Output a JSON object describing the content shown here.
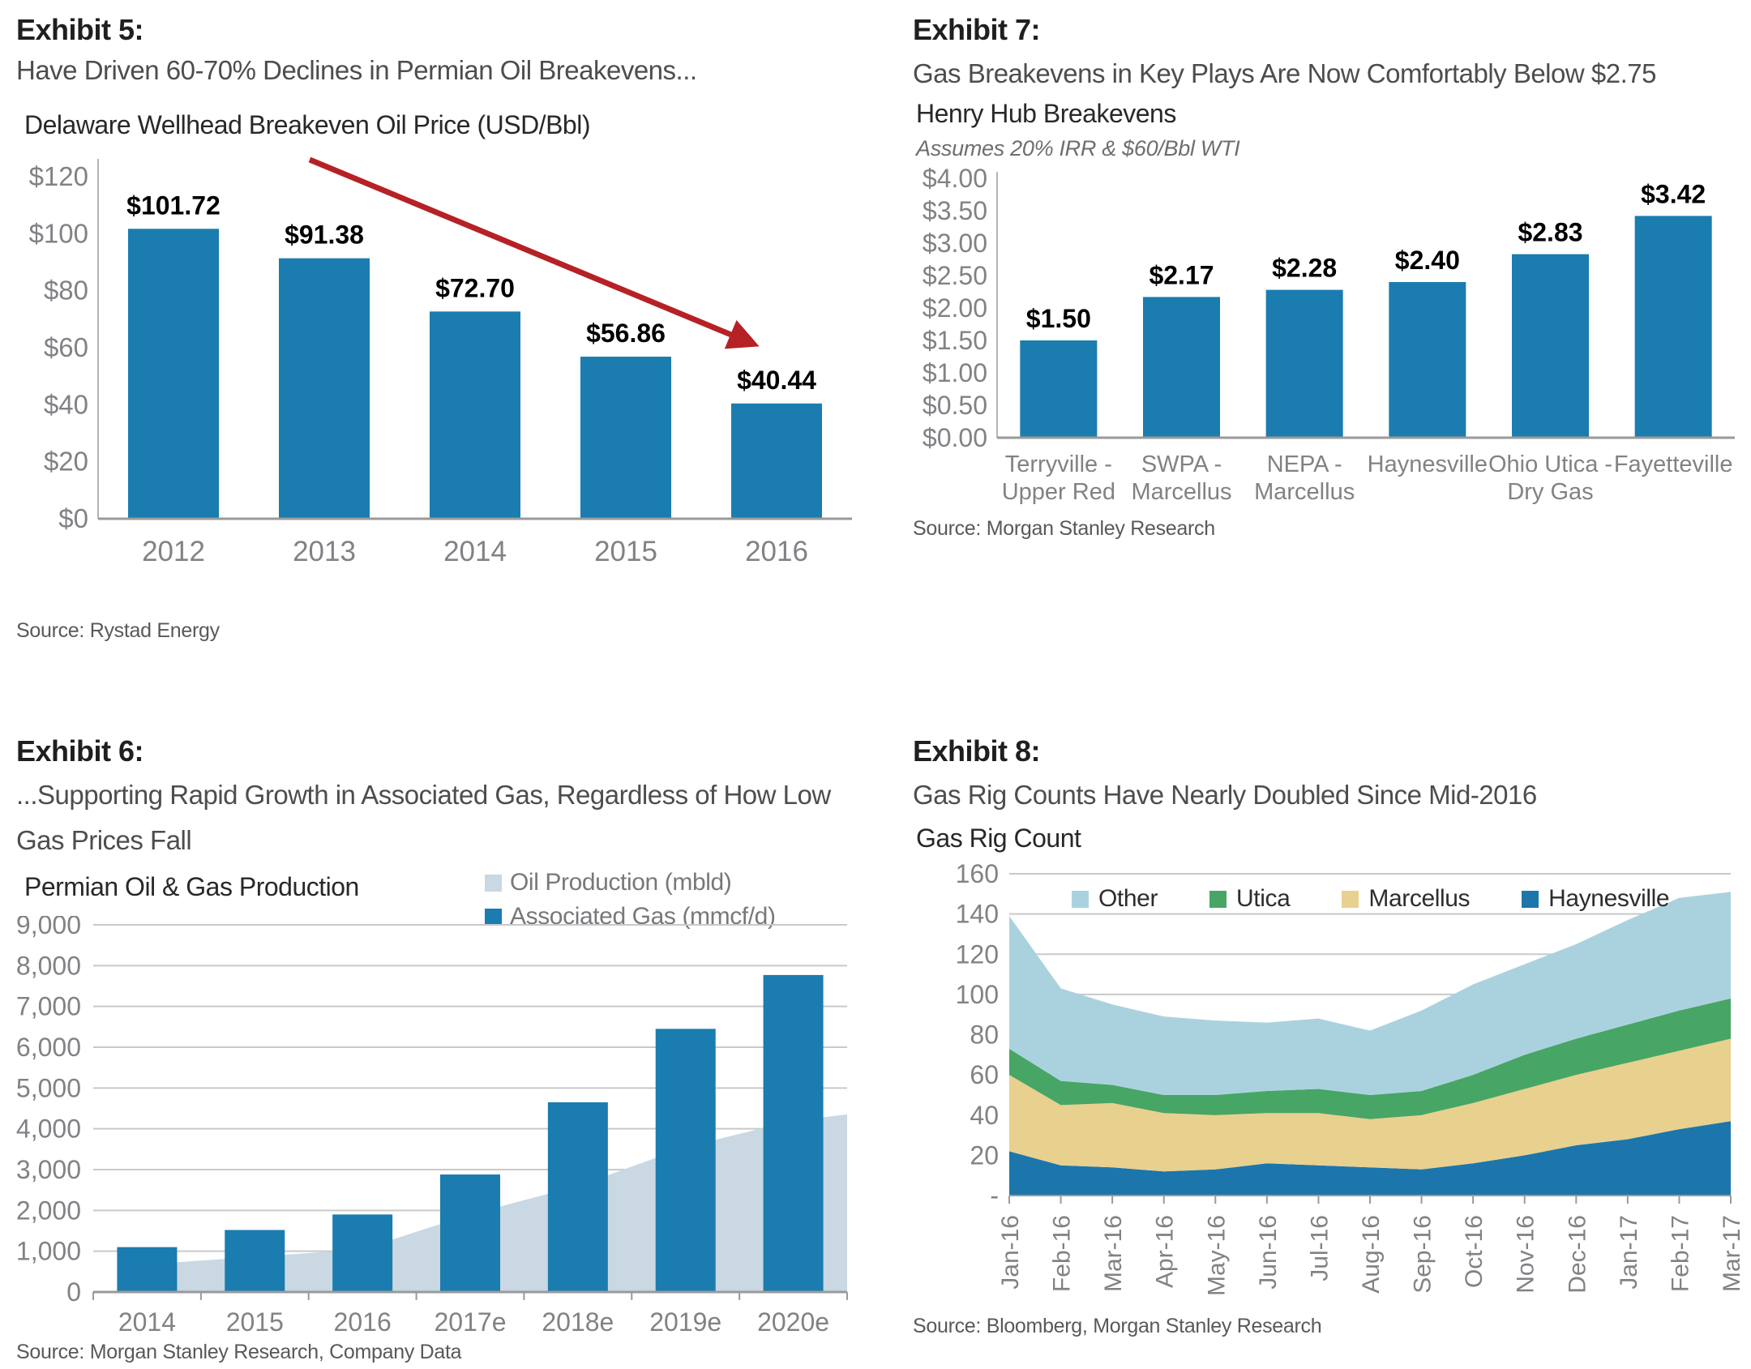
{
  "colors": {
    "bar_blue": "#1b7caf",
    "oil_area": "#c9d8e2",
    "arrow_red": "#b62125",
    "grid": "#c9c9c9",
    "axis_light": "#b5b5b5",
    "axis_dark": "#9a9a9a",
    "tick_text": "#808285",
    "data_label": "#000000"
  },
  "exhibits": [
    {
      "header": "Exhibit 5:",
      "subtitle": "Have Driven 60-70% Declines in Permian Oil Breakevens...",
      "source": "Source: Rystad Energy"
    },
    {
      "header": "Exhibit 7:",
      "subtitle": "Gas Breakevens in Key Plays Are Now Comfortably Below $2.75",
      "source": "Source: Morgan Stanley Research"
    },
    {
      "header": "Exhibit 6:",
      "subtitle_line1": "...Supporting Rapid Growth in Associated Gas, Regardless of How Low",
      "subtitle_line2": "Gas Prices Fall",
      "source": "Source: Morgan Stanley Research, Company Data"
    },
    {
      "header": "Exhibit 8:",
      "subtitle": "Gas Rig Counts Have Nearly Doubled Since Mid-2016",
      "source": "Source: Bloomberg, Morgan Stanley Research"
    }
  ],
  "chart_data": [
    {
      "id": "ex5",
      "type": "bar",
      "title": "Delaware Wellhead Breakeven Oil Price (USD/Bbl)",
      "categories": [
        "2012",
        "2013",
        "2014",
        "2015",
        "2016"
      ],
      "values": [
        101.72,
        91.38,
        72.7,
        56.86,
        40.44
      ],
      "value_labels": [
        "$101.72",
        "$91.38",
        "$72.70",
        "$56.86",
        "$40.44"
      ],
      "ylim": [
        0,
        120
      ],
      "ytick_step": 20,
      "ytick_labels": [
        "$0",
        "$20",
        "$40",
        "$60",
        "$80",
        "$100",
        "$120"
      ],
      "grid": false,
      "annotation": "red declining trend arrow"
    },
    {
      "id": "ex7",
      "type": "bar",
      "title": "Henry Hub Breakevens",
      "note": "Assumes 20% IRR & $60/Bbl WTI",
      "categories": [
        "Terryville - Upper Red",
        "SWPA - Marcellus",
        "NEPA - Marcellus",
        "Haynesville",
        "Ohio Utica - Dry Gas",
        "Fayetteville"
      ],
      "category_lines": [
        [
          "Terryville -",
          "Upper Red"
        ],
        [
          "SWPA -",
          "Marcellus"
        ],
        [
          "NEPA -",
          "Marcellus"
        ],
        [
          "Haynesville"
        ],
        [
          "Ohio Utica -",
          "Dry Gas"
        ],
        [
          "Fayetteville"
        ]
      ],
      "values": [
        1.5,
        2.17,
        2.28,
        2.4,
        2.83,
        3.42
      ],
      "value_labels": [
        "$1.50",
        "$2.17",
        "$2.28",
        "$2.40",
        "$2.83",
        "$3.42"
      ],
      "ylim": [
        0,
        4
      ],
      "ytick_step": 0.5,
      "ytick_labels": [
        "$0.00",
        "$0.50",
        "$1.00",
        "$1.50",
        "$2.00",
        "$2.50",
        "$3.00",
        "$3.50",
        "$4.00"
      ],
      "grid": false
    },
    {
      "id": "ex6",
      "type": "bar+area",
      "title": "Permian Oil & Gas Production",
      "legend": [
        {
          "label": "Oil Production (mbld)",
          "color": "#c9d8e2"
        },
        {
          "label": "Associated Gas (mmcf/d)",
          "color": "#1b7caf"
        }
      ],
      "categories": [
        "2014",
        "2015",
        "2016",
        "2017e",
        "2018e",
        "2019e",
        "2020e"
      ],
      "series": [
        {
          "name": "Oil Production (mbld)",
          "type": "area",
          "color": "#c9d8e2",
          "values": [
            680,
            860,
            1050,
            1900,
            2600,
            3550,
            4200
          ],
          "right_edge_value": 4350
        },
        {
          "name": "Associated Gas (mmcf/d)",
          "type": "bar",
          "color": "#1b7caf",
          "values": [
            1100,
            1520,
            1900,
            2880,
            4650,
            6450,
            7770
          ]
        }
      ],
      "ylim": [
        0,
        9000
      ],
      "ytick_step": 1000,
      "ytick_labels": [
        "0",
        "1,000",
        "2,000",
        "3,000",
        "4,000",
        "5,000",
        "6,000",
        "7,000",
        "8,000",
        "9,000"
      ],
      "grid": true
    },
    {
      "id": "ex8",
      "type": "stacked-area",
      "title": "Gas Rig Count",
      "legend": [
        {
          "label": "Other",
          "color": "#aad2de"
        },
        {
          "label": "Utica",
          "color": "#47a566"
        },
        {
          "label": "Marcellus",
          "color": "#e8d08e"
        },
        {
          "label": "Haynesville",
          "color": "#1c76ab"
        }
      ],
      "x": [
        "Jan-16",
        "Feb-16",
        "Mar-16",
        "Apr-16",
        "May-16",
        "Jun-16",
        "Jul-16",
        "Aug-16",
        "Sep-16",
        "Oct-16",
        "Nov-16",
        "Dec-16",
        "Jan-17",
        "Feb-17",
        "Mar-17"
      ],
      "series": [
        {
          "name": "Haynesville",
          "color": "#1c76ab",
          "values": [
            22,
            15,
            14,
            12,
            13,
            16,
            15,
            14,
            13,
            16,
            20,
            25,
            28,
            33,
            37
          ]
        },
        {
          "name": "Marcellus",
          "color": "#e8d08e",
          "values": [
            38,
            30,
            32,
            29,
            27,
            25,
            26,
            24,
            27,
            30,
            33,
            35,
            38,
            39,
            41
          ]
        },
        {
          "name": "Utica",
          "color": "#47a566",
          "values": [
            13,
            12,
            9,
            9,
            10,
            11,
            12,
            12,
            12,
            14,
            17,
            18,
            19,
            20,
            20
          ]
        },
        {
          "name": "Other",
          "color": "#aad2de",
          "values": [
            66,
            46,
            40,
            39,
            37,
            34,
            35,
            32,
            40,
            45,
            45,
            47,
            52,
            56,
            53
          ]
        }
      ],
      "ylim": [
        0,
        160
      ],
      "ytick_step": 20,
      "ytick_labels": [
        "-",
        "20",
        "40",
        "60",
        "80",
        "100",
        "120",
        "140",
        "160"
      ],
      "grid": true,
      "legend_position": "top-inside"
    }
  ]
}
